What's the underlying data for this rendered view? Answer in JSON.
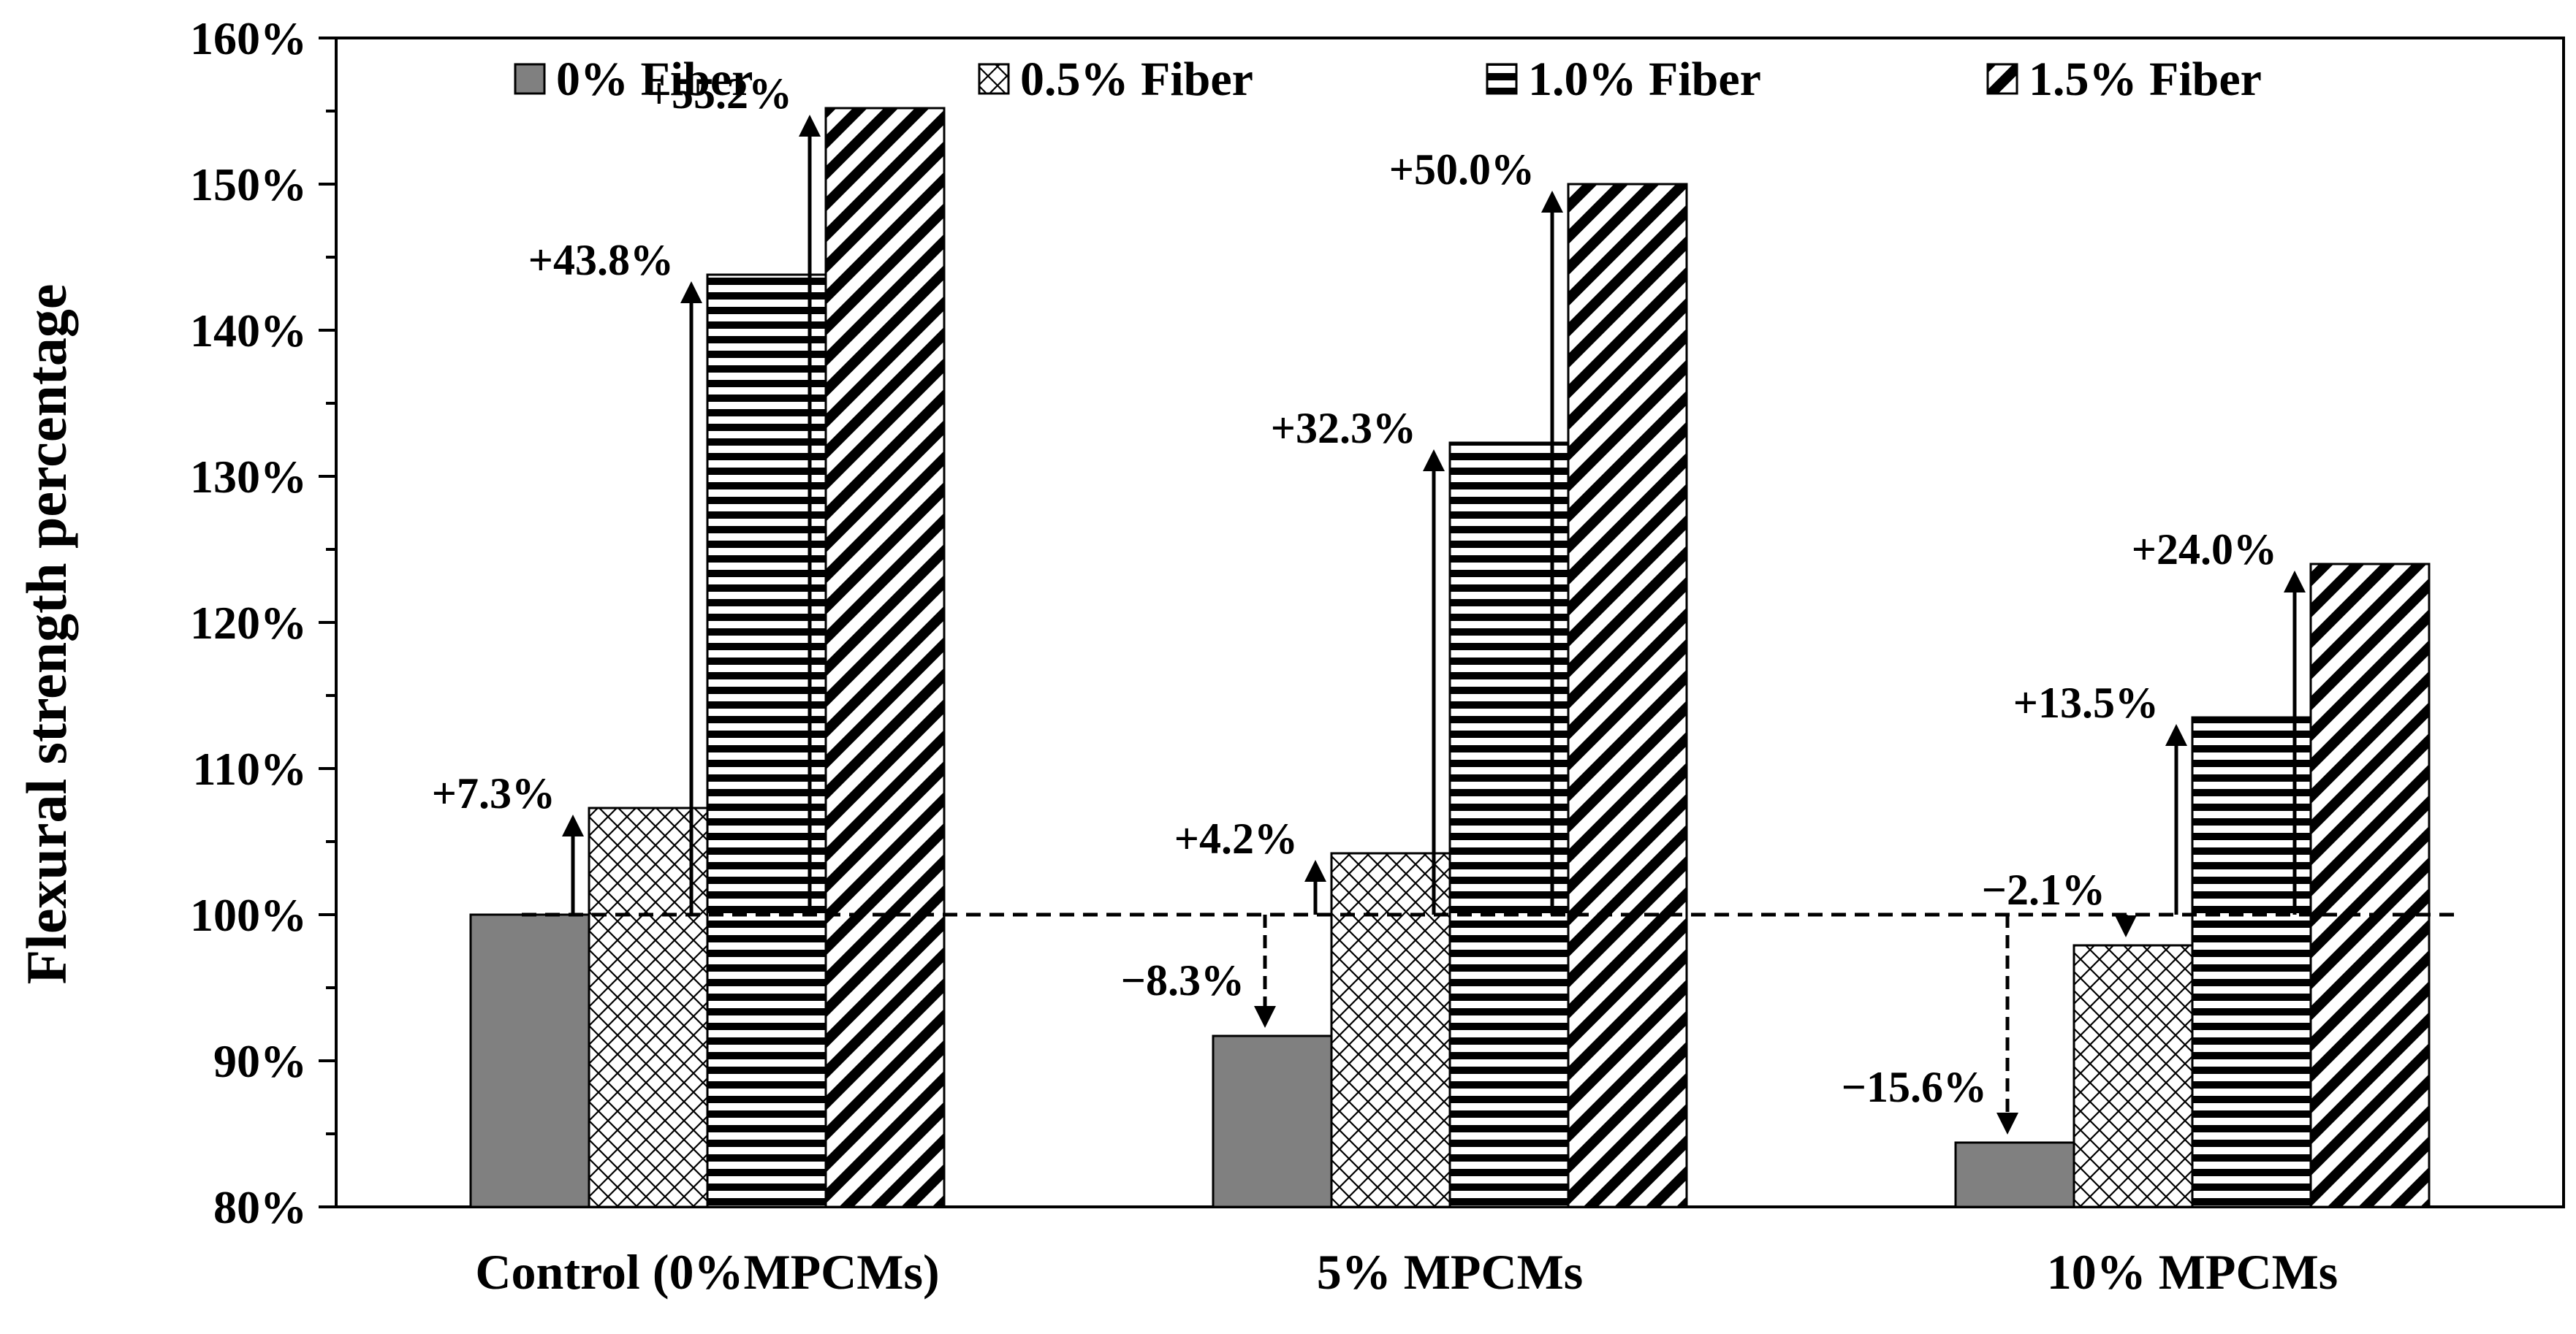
{
  "colors": {
    "text": "#000000",
    "axis": "#000000",
    "solid_fill": "#808080",
    "bar_stroke": "#000000",
    "background": "#ffffff"
  },
  "chart_data": {
    "type": "bar",
    "title": "",
    "xlabel": "",
    "ylabel": "Flexural strength percentage",
    "ylim": [
      80,
      160
    ],
    "major_step": 10,
    "minor_step": 5,
    "tick_suffix": "%",
    "grid": false,
    "legend_position": "top",
    "categories": [
      "Control (0%MPCMs)",
      "5% MPCMs",
      "10% MPCMs"
    ],
    "series": [
      {
        "name": "0% Fiber",
        "pattern": "solid-gray",
        "values": [
          100,
          91.7,
          84.4
        ]
      },
      {
        "name": "0.5% Fiber",
        "pattern": "cross-hatch",
        "values": [
          107.3,
          104.2,
          97.9
        ]
      },
      {
        "name": "1.0% Fiber",
        "pattern": "horizontal-lines",
        "values": [
          143.8,
          132.3,
          113.5
        ]
      },
      {
        "name": "1.5% Fiber",
        "pattern": "diagonal-lines",
        "values": [
          155.2,
          150.0,
          124.0
        ]
      }
    ],
    "reference_line": 100,
    "annotations": [
      {
        "category": 0,
        "series": 1,
        "label": "+7.3%",
        "dashed": false
      },
      {
        "category": 0,
        "series": 2,
        "label": "+43.8%",
        "dashed": false
      },
      {
        "category": 0,
        "series": 3,
        "label": "+55.2%",
        "dashed": false
      },
      {
        "category": 1,
        "series": 0,
        "label": "−8.3%",
        "dashed": true
      },
      {
        "category": 1,
        "series": 1,
        "label": "+4.2%",
        "dashed": false
      },
      {
        "category": 1,
        "series": 2,
        "label": "+32.3%",
        "dashed": false
      },
      {
        "category": 1,
        "series": 3,
        "label": "+50.0%",
        "dashed": false
      },
      {
        "category": 2,
        "series": 0,
        "label": "−15.6%",
        "dashed": true
      },
      {
        "category": 2,
        "series": 1,
        "label": "−2.1%",
        "dashed": true
      },
      {
        "category": 2,
        "series": 2,
        "label": "+13.5%",
        "dashed": false
      },
      {
        "category": 2,
        "series": 3,
        "label": "+24.0%",
        "dashed": false
      }
    ]
  }
}
